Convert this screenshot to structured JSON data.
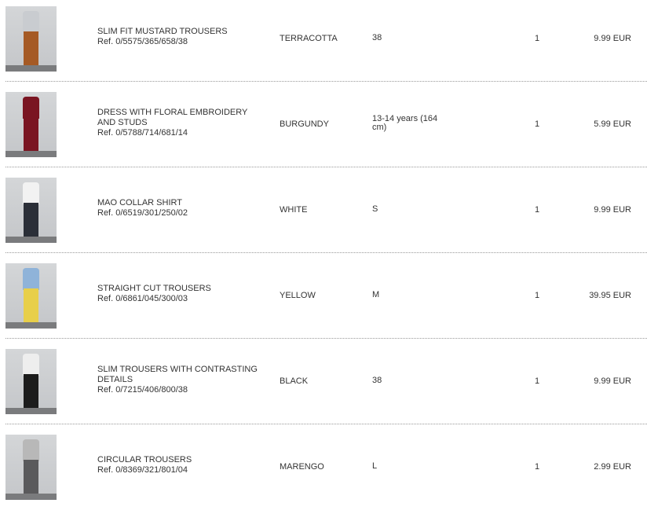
{
  "items": [
    {
      "name": "SLIM FIT MUSTARD TROUSERS",
      "ref": "Ref. 0/5575/365/658/38",
      "color": "TERRACOTTA",
      "size": "38",
      "qty": "1",
      "price": "9.99 EUR",
      "top_color": "#c9ccd0",
      "bottom_color": "#a55a25"
    },
    {
      "name": "DRESS WITH FLORAL EMBROIDERY AND STUDS",
      "ref": "Ref. 0/5788/714/681/14",
      "color": "BURGUNDY",
      "size": "13-14 years (164 cm)",
      "qty": "1",
      "price": "5.99 EUR",
      "top_color": "#7a1522",
      "bottom_color": "#7a1522"
    },
    {
      "name": "MAO COLLAR SHIRT",
      "ref": "Ref. 0/6519/301/250/02",
      "color": "WHITE",
      "size": "S",
      "qty": "1",
      "price": "9.99 EUR",
      "top_color": "#f2f2f2",
      "bottom_color": "#2b2f38"
    },
    {
      "name": "STRAIGHT CUT TROUSERS",
      "ref": "Ref. 0/6861/045/300/03",
      "color": "YELLOW",
      "size": "M",
      "qty": "1",
      "price": "39.95 EUR",
      "top_color": "#8fb3d9",
      "bottom_color": "#e8cf4a"
    },
    {
      "name": "SLIM TROUSERS WITH CONTRASTING DETAILS",
      "ref": "Ref. 0/7215/406/800/38",
      "color": "BLACK",
      "size": "38",
      "qty": "1",
      "price": "9.99 EUR",
      "top_color": "#eeeeee",
      "bottom_color": "#1c1c1c"
    },
    {
      "name": "CIRCULAR TROUSERS",
      "ref": "Ref. 0/8369/321/801/04",
      "color": "MARENGO",
      "size": "L",
      "qty": "1",
      "price": "2.99 EUR",
      "top_color": "#b8b8b8",
      "bottom_color": "#5a5a5c"
    }
  ]
}
